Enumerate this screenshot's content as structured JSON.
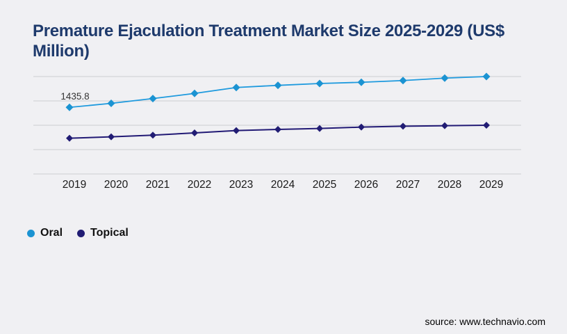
{
  "title": "Premature Ejaculation Treatment Market Size 2025-2029 (US$ Million)",
  "annotation_label": "1435.8",
  "source_text": "source: www.technavio.com",
  "legend": [
    {
      "label": "Oral",
      "color": "#1b93d2"
    },
    {
      "label": "Topical",
      "color": "#211c74"
    }
  ],
  "colors": {
    "background": "#f0f0f3",
    "title": "#1e3a6c",
    "gridline": "#cdced2",
    "oral": "#1b93d2",
    "topical": "#211c74"
  },
  "chart_data": {
    "type": "line",
    "title": "Premature Ejaculation Treatment Market Size 2025-2029 (US$ Million)",
    "xlabel": "",
    "ylabel": "",
    "x": [
      "2019",
      "2020",
      "2021",
      "2022",
      "2023",
      "2024",
      "2025",
      "2026",
      "2027",
      "2028",
      "2029"
    ],
    "series": [
      {
        "name": "Oral",
        "color": "#1b93d2",
        "line_color": "#1e9ade",
        "marker": "diamond",
        "values": [
          1435.8,
          1522,
          1625,
          1736,
          1864,
          1910,
          1950,
          1976,
          2014,
          2066,
          2100
        ]
      },
      {
        "name": "Topical",
        "color": "#211c74",
        "line_color": "#221a75",
        "marker": "diamond",
        "values": [
          770,
          800,
          836,
          885,
          935,
          960,
          980,
          1010,
          1030,
          1040,
          1050
        ]
      }
    ],
    "ylim": [
      0,
      2100
    ],
    "y_axis_labels_visible": false,
    "grid": "horizontal",
    "legend_position": "bottom-left",
    "data_label": {
      "series": "Oral",
      "x": "2019",
      "text": "1435.8"
    }
  }
}
